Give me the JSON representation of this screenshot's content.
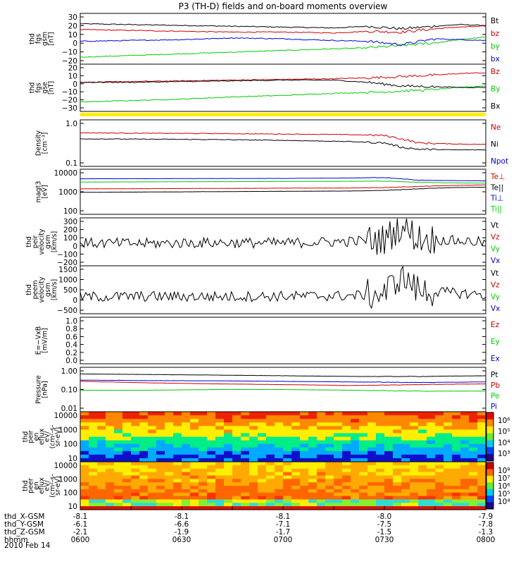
{
  "title": "P3 (TH-D) fields and on-board moments overview",
  "panels": [
    {
      "id": "fgs-gsm",
      "ylabel": [
        "thd",
        "fgs",
        "gsm",
        "[nT]"
      ],
      "yticks": [
        "30",
        "20",
        "10",
        "0",
        "−10",
        "−20"
      ],
      "yrange": [
        -22,
        32
      ],
      "log": false,
      "legend": [
        {
          "text": "Bt",
          "color": "#000000"
        },
        {
          "text": "bz",
          "color": "#cc0000"
        },
        {
          "text": "by",
          "color": "#00cc00"
        },
        {
          "text": "bx",
          "color": "#0000cc"
        }
      ]
    },
    {
      "id": "fgs-gse",
      "ylabel": [
        "thd",
        "fgs",
        "gse",
        "[nT]"
      ],
      "yticks": [
        "20",
        "10",
        "0",
        "−10",
        "−20",
        "−30"
      ],
      "yrange": [
        -36,
        21
      ],
      "log": false,
      "legend": [
        {
          "text": "Bz",
          "color": "#cc0000"
        },
        {
          "text": "By",
          "color": "#00cc00"
        },
        {
          "text": "Bx",
          "color": "#000000"
        }
      ]
    },
    {
      "id": "density",
      "ylabel": [
        "Density",
        "[cm⁻³]"
      ],
      "yticks": [
        "1.0",
        "0.1"
      ],
      "yrange": [
        0.1,
        1.2
      ],
      "log": true,
      "legend": [
        {
          "text": "Ne",
          "color": "#cc0000"
        },
        {
          "text": "Ni",
          "color": "#000000"
        },
        {
          "text": "Npot",
          "color": "#0000cc"
        }
      ]
    },
    {
      "id": "temperature",
      "ylabel": [
        "magt3",
        "[eV]"
      ],
      "yticks": [
        "10000",
        "1000",
        "100"
      ],
      "yrange": [
        100,
        14000
      ],
      "log": true,
      "legend": [
        {
          "text": "Te⊥",
          "color": "#cc0000"
        },
        {
          "text": "Te||",
          "color": "#000000"
        },
        {
          "text": "Ti⊥",
          "color": "#0000cc"
        },
        {
          "text": "Ti||",
          "color": "#00cc00"
        }
      ]
    },
    {
      "id": "peir-velocity",
      "ylabel": [
        "thd",
        "peir",
        "velocity",
        "gsm",
        "[km/s]"
      ],
      "yticks": [
        "300",
        "200",
        "100",
        "0",
        "−100",
        "−200"
      ],
      "yrange": [
        -200,
        310
      ],
      "log": false,
      "legend": [
        {
          "text": "Vt",
          "color": "#000000"
        },
        {
          "text": "Vz",
          "color": "#cc0000"
        },
        {
          "text": "Vy",
          "color": "#00cc00"
        },
        {
          "text": "Vx",
          "color": "#0000cc"
        }
      ]
    },
    {
      "id": "peem-velocity",
      "ylabel": [
        "thd",
        "peem",
        "velocity",
        "gsm",
        "[km/s]"
      ],
      "yticks": [
        "1500",
        "1000",
        "500",
        "0",
        "−500"
      ],
      "yrange": [
        -600,
        1500
      ],
      "log": false,
      "legend": [
        {
          "text": "Vt",
          "color": "#000000"
        },
        {
          "text": "Vz",
          "color": "#cc0000"
        },
        {
          "text": "Vy",
          "color": "#00cc00"
        },
        {
          "text": "Vx",
          "color": "#0000cc"
        }
      ]
    },
    {
      "id": "efield",
      "ylabel": [
        "E=−VxB",
        "[mV/m]"
      ],
      "yticks": [
        "1.0",
        "0.8",
        "0.6",
        "0.4",
        "0.2",
        "0.0"
      ],
      "yrange": [
        0,
        1.0
      ],
      "log": false,
      "legend": [
        {
          "text": "Ez",
          "color": "#cc0000"
        },
        {
          "text": "Ey",
          "color": "#00cc00"
        },
        {
          "text": "Ex",
          "color": "#0000cc"
        }
      ]
    },
    {
      "id": "pressure",
      "ylabel": [
        "Pressure",
        "[nPa]"
      ],
      "yticks": [
        "1.00",
        "0.10",
        "0.01"
      ],
      "yrange": [
        0.01,
        1.2
      ],
      "log": true,
      "legend": [
        {
          "text": "Pt",
          "color": "#000000"
        },
        {
          "text": "Pb",
          "color": "#cc0000"
        },
        {
          "text": "Pe",
          "color": "#00cc00"
        },
        {
          "text": "Pi",
          "color": "#0000cc"
        }
      ]
    },
    {
      "id": "peir-spectrogram",
      "ylabel": [
        "thd",
        "peir",
        "en",
        "eflux",
        "eV/",
        "(cm²-s-",
        "sr-eV)"
      ],
      "yticks": [
        "10000",
        "1000",
        "100",
        "10"
      ],
      "colorbar": [
        "10⁶",
        "10⁵",
        "10⁴",
        "10³"
      ]
    },
    {
      "id": "peer-spectrogram",
      "ylabel": [
        "thd",
        "peer",
        "en",
        "eflux",
        "eV/",
        "(cm²-s-",
        "sr-eV)"
      ],
      "yticks": [
        "10000",
        "1000",
        "100",
        "10"
      ],
      "colorbar": [
        "10⁸",
        "10⁷",
        "10⁶",
        "10⁵",
        "10⁴"
      ]
    }
  ],
  "xaxis": {
    "rows": [
      {
        "label": "thd_X-GSM",
        "values": [
          "-8.1",
          "-8.1",
          "-8.1",
          "-8.0",
          "-7.9"
        ]
      },
      {
        "label": "thd_Y-GSM",
        "values": [
          "-6.1",
          "-6.6",
          "-7.1",
          "-7.5",
          "-7.8"
        ]
      },
      {
        "label": "thd_Z-GSM",
        "values": [
          "-2.1",
          "-1.9",
          "-1.7",
          "-1.5",
          "-1.3"
        ]
      },
      {
        "label": "hhmm",
        "values": [
          "0600",
          "0630",
          "0700",
          "0730",
          "0800"
        ]
      }
    ],
    "date": "2010 Feb 14"
  },
  "chart_data": {
    "type": "line",
    "title": "P3 (TH-D) fields and on-board moments overview",
    "time_range": [
      "2010-02-14 06:00",
      "2010-02-14 08:00"
    ],
    "x_ticks": [
      "0600",
      "0630",
      "0700",
      "0730",
      "0800"
    ],
    "series": [
      {
        "panel": "fgs-gsm",
        "name": "Bt",
        "color": "#000000",
        "x": [
          0,
          15,
          30,
          45,
          60,
          75,
          85,
          95,
          105,
          112,
          120
        ],
        "values": [
          23,
          22,
          21,
          20,
          19,
          18,
          20,
          17,
          20,
          22,
          21
        ]
      },
      {
        "panel": "fgs-gsm",
        "name": "bz",
        "color": "#cc0000",
        "x": [
          0,
          15,
          30,
          45,
          60,
          75,
          85,
          95,
          105,
          112,
          120
        ],
        "values": [
          16,
          15,
          14,
          13,
          13,
          12,
          14,
          13,
          17,
          19,
          20
        ]
      },
      {
        "panel": "fgs-gsm",
        "name": "by",
        "color": "#00cc00",
        "x": [
          0,
          15,
          30,
          45,
          60,
          75,
          85,
          95,
          105,
          112,
          120
        ],
        "values": [
          -17,
          -15,
          -13,
          -11,
          -9,
          -7,
          -6,
          -3,
          0,
          4,
          7
        ]
      },
      {
        "panel": "fgs-gsm",
        "name": "bx",
        "color": "#0000cc",
        "x": [
          0,
          15,
          30,
          45,
          60,
          75,
          85,
          95,
          105,
          112,
          120
        ],
        "values": [
          2,
          3,
          4,
          6,
          5,
          3,
          2,
          -2,
          5,
          4,
          3
        ]
      },
      {
        "panel": "fgs-gse",
        "name": "Bz",
        "color": "#cc0000",
        "x": [
          0,
          15,
          30,
          45,
          60,
          75,
          85,
          95,
          105,
          112,
          120
        ],
        "values": [
          0,
          1,
          2,
          3,
          4,
          5,
          6,
          8,
          10,
          12,
          13
        ]
      },
      {
        "panel": "fgs-gse",
        "name": "By",
        "color": "#00cc00",
        "x": [
          0,
          15,
          30,
          45,
          60,
          75,
          85,
          95,
          105,
          112,
          120
        ],
        "values": [
          -27,
          -25,
          -23,
          -20,
          -18,
          -15,
          -14,
          -12,
          -10,
          -7,
          -5
        ]
      },
      {
        "panel": "fgs-gse",
        "name": "Bx",
        "color": "#000000",
        "x": [
          0,
          15,
          30,
          45,
          60,
          75,
          85,
          95,
          105,
          112,
          120
        ],
        "values": [
          0,
          0,
          1,
          2,
          3,
          3,
          0,
          -5,
          -6,
          -7,
          -7
        ]
      },
      {
        "panel": "density",
        "name": "Ne",
        "color": "#cc0000",
        "x": [
          0,
          20,
          40,
          60,
          80,
          90,
          95,
          100,
          110,
          120
        ],
        "values": [
          0.65,
          0.63,
          0.62,
          0.6,
          0.58,
          0.55,
          0.45,
          0.35,
          0.33,
          0.32
        ]
      },
      {
        "panel": "density",
        "name": "Ni",
        "color": "#000000",
        "x": [
          0,
          20,
          40,
          60,
          80,
          90,
          95,
          100,
          110,
          120
        ],
        "values": [
          0.45,
          0.44,
          0.43,
          0.41,
          0.38,
          0.35,
          0.27,
          0.24,
          0.23,
          0.23
        ]
      },
      {
        "panel": "temperature",
        "name": "Te⊥",
        "color": "#cc0000",
        "x": [
          0,
          20,
          40,
          60,
          80,
          90,
          100,
          110,
          120
        ],
        "values": [
          1700,
          1750,
          1800,
          1850,
          1900,
          2000,
          2300,
          2600,
          2800
        ]
      },
      {
        "panel": "temperature",
        "name": "Te||",
        "color": "#000000",
        "x": [
          0,
          20,
          40,
          60,
          80,
          90,
          100,
          110,
          120
        ],
        "values": [
          1100,
          1150,
          1200,
          1250,
          1300,
          1400,
          1700,
          2000,
          2100
        ]
      },
      {
        "panel": "temperature",
        "name": "Ti⊥",
        "color": "#0000cc",
        "x": [
          0,
          20,
          40,
          60,
          80,
          90,
          100,
          110,
          120
        ],
        "values": [
          6000,
          6100,
          6200,
          6300,
          6600,
          7000,
          5000,
          4800,
          4600
        ]
      },
      {
        "panel": "temperature",
        "name": "Ti||",
        "color": "#00cc00",
        "x": [
          0,
          20,
          40,
          60,
          80,
          90,
          100,
          110,
          120
        ],
        "values": [
          4000,
          4100,
          4200,
          4300,
          4400,
          4500,
          3900,
          3600,
          3500
        ]
      },
      {
        "panel": "peir-velocity",
        "name": "Vt",
        "color": "#000000",
        "x": [
          0,
          20,
          40,
          60,
          80,
          90,
          95,
          100,
          110,
          120
        ],
        "values": [
          40,
          35,
          45,
          40,
          60,
          80,
          250,
          100,
          70,
          50
        ]
      },
      {
        "panel": "peem-velocity",
        "name": "Vt",
        "color": "#000000",
        "x": [
          0,
          20,
          40,
          60,
          80,
          90,
          95,
          100,
          110,
          120
        ],
        "values": [
          100,
          120,
          110,
          130,
          150,
          250,
          1200,
          400,
          300,
          200
        ]
      },
      {
        "panel": "pressure",
        "name": "Pt",
        "color": "#000000",
        "x": [
          0,
          20,
          40,
          60,
          80,
          100,
          120
        ],
        "values": [
          0.75,
          0.7,
          0.65,
          0.6,
          0.55,
          0.55,
          0.6
        ]
      },
      {
        "panel": "pressure",
        "name": "Pb",
        "color": "#cc0000",
        "x": [
          0,
          20,
          40,
          60,
          80,
          100,
          120
        ],
        "values": [
          0.3,
          0.25,
          0.22,
          0.2,
          0.18,
          0.2,
          0.22
        ]
      },
      {
        "panel": "pressure",
        "name": "Pe",
        "color": "#00cc00",
        "x": [
          0,
          20,
          40,
          60,
          80,
          100,
          120
        ],
        "values": [
          0.1,
          0.1,
          0.11,
          0.11,
          0.1,
          0.09,
          0.09
        ]
      },
      {
        "panel": "pressure",
        "name": "Pi",
        "color": "#0000cc",
        "x": [
          0,
          20,
          40,
          60,
          80,
          100,
          120
        ],
        "values": [
          0.35,
          0.33,
          0.32,
          0.3,
          0.28,
          0.26,
          0.28
        ]
      }
    ]
  }
}
